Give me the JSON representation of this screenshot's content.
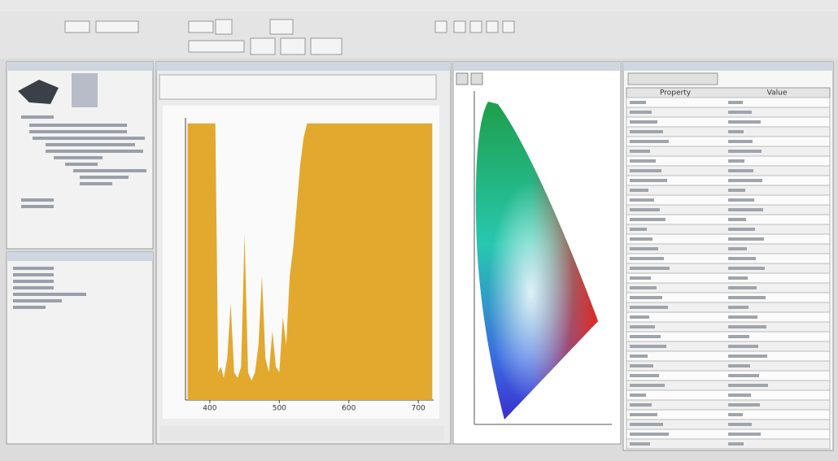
{
  "spectrum": {
    "type": "area",
    "color": "#e2a92e",
    "x": [
      368,
      372,
      376,
      380,
      384,
      388,
      392,
      396,
      400,
      404,
      408,
      412,
      416,
      420,
      425,
      430,
      435,
      440,
      445,
      450,
      455,
      460,
      465,
      470,
      475,
      480,
      485,
      490,
      495,
      500,
      505,
      510,
      515,
      520,
      525,
      530,
      535,
      540,
      545,
      550,
      560,
      580,
      600,
      620,
      640,
      660,
      680,
      700,
      720
    ],
    "values": [
      1,
      1,
      1,
      1,
      1,
      1,
      1,
      1,
      1,
      1,
      1,
      0.1,
      0.12,
      0.08,
      0.15,
      0.35,
      0.1,
      0.08,
      0.12,
      0.6,
      0.1,
      0.07,
      0.1,
      0.2,
      0.45,
      0.15,
      0.1,
      0.25,
      0.12,
      0.1,
      0.3,
      0.2,
      0.45,
      0.55,
      0.7,
      0.85,
      0.95,
      1,
      1,
      1,
      1,
      1,
      1,
      1,
      1,
      1,
      1,
      1,
      1
    ],
    "xlim": [
      365,
      722
    ],
    "ylim": [
      0,
      1.02
    ],
    "xticks": [
      400,
      500,
      600,
      700
    ]
  },
  "properties": {
    "headers": [
      "Property",
      "Value"
    ]
  }
}
